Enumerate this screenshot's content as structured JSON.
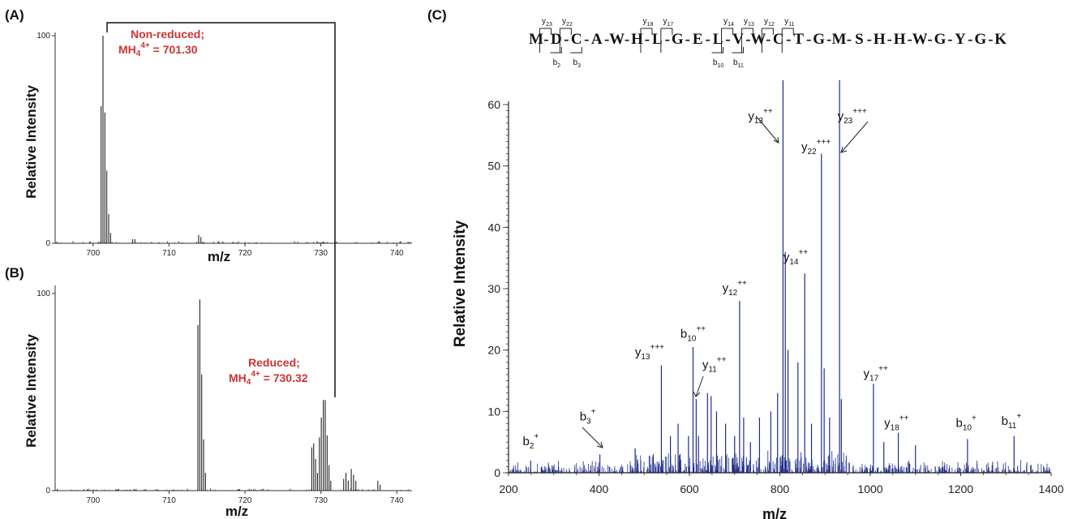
{
  "panels": {
    "a": {
      "label": "(A)"
    },
    "b": {
      "label": "(B)"
    },
    "c": {
      "label": "(C)"
    }
  },
  "annotations": {
    "non_reduced": {
      "line1": "Non-reduced;",
      "prefix": "MH",
      "sub": "4",
      "sup": "4+",
      "value": " = 701.30"
    },
    "reduced": {
      "line1": "Reduced;",
      "prefix": "MH",
      "sub": "4",
      "sup": "4+",
      "value": " = 730.32"
    },
    "color": "#cc3333"
  },
  "peptide": {
    "residues": [
      "M",
      "D",
      "C",
      "A",
      "W",
      "H",
      "L",
      "G",
      "E",
      "L",
      "V",
      "W",
      "C",
      "T",
      "G",
      "M",
      "S",
      "H",
      "H",
      "W",
      "G",
      "Y",
      "G",
      "K"
    ],
    "y_top": [
      {
        "after": 1,
        "ion": "y",
        "sub": "23"
      },
      {
        "after": 2,
        "ion": "y",
        "sub": "22"
      },
      {
        "after": 6,
        "ion": "y",
        "sub": "18"
      },
      {
        "after": 7,
        "ion": "y",
        "sub": "17"
      },
      {
        "after": 10,
        "ion": "y",
        "sub": "14"
      },
      {
        "after": 11,
        "ion": "y",
        "sub": "13"
      },
      {
        "after": 12,
        "ion": "y",
        "sub": "12"
      },
      {
        "after": 13,
        "ion": "y",
        "sub": "11"
      }
    ],
    "b_bottom": [
      {
        "after": 2,
        "ion": "b",
        "sub": "2"
      },
      {
        "after": 3,
        "ion": "b",
        "sub": "3"
      },
      {
        "after": 10,
        "ion": "b",
        "sub": "10"
      },
      {
        "after": 11,
        "ion": "b",
        "sub": "11"
      }
    ]
  },
  "chart_data": [
    {
      "id": "A",
      "type": "bar",
      "xlabel": "m/z",
      "ylabel": "Relative Intensity",
      "xlim": [
        695,
        742
      ],
      "ylim": [
        0,
        100
      ],
      "xticks": [
        700,
        710,
        720,
        730,
        740
      ],
      "yticks": [
        0,
        100
      ],
      "color": "#222222",
      "peaks": [
        [
          701.05,
          66
        ],
        [
          701.3,
          100
        ],
        [
          701.55,
          63
        ],
        [
          701.8,
          35
        ],
        [
          702.05,
          14
        ],
        [
          702.3,
          5
        ],
        [
          705.2,
          2
        ],
        [
          705.5,
          2
        ],
        [
          713.9,
          4
        ],
        [
          714.2,
          3
        ],
        [
          729.5,
          1
        ],
        [
          737.7,
          1
        ]
      ]
    },
    {
      "id": "B",
      "type": "bar",
      "xlabel": "m/z",
      "ylabel": "Relative Intensity",
      "xlim": [
        695,
        742
      ],
      "ylim": [
        0,
        100
      ],
      "xticks": [
        700,
        710,
        720,
        730,
        740
      ],
      "yticks": [
        0,
        100
      ],
      "color": "#222222",
      "peaks": [
        [
          713.8,
          84
        ],
        [
          714.05,
          97
        ],
        [
          714.3,
          59
        ],
        [
          714.55,
          26
        ],
        [
          714.8,
          9
        ],
        [
          728.8,
          22
        ],
        [
          729.05,
          24
        ],
        [
          729.3,
          16
        ],
        [
          729.55,
          9
        ],
        [
          729.8,
          27
        ],
        [
          730.05,
          37
        ],
        [
          730.32,
          46
        ],
        [
          730.57,
          46
        ],
        [
          730.82,
          28
        ],
        [
          731.07,
          13
        ],
        [
          731.3,
          5
        ],
        [
          733.0,
          6
        ],
        [
          733.3,
          9
        ],
        [
          733.6,
          5
        ],
        [
          734.0,
          11
        ],
        [
          734.3,
          8
        ],
        [
          734.6,
          5
        ],
        [
          737.5,
          5
        ],
        [
          737.8,
          3
        ]
      ]
    },
    {
      "id": "C",
      "type": "bar",
      "xlabel": "m/z",
      "ylabel": "Relative Intensity",
      "xlim": [
        200,
        1400
      ],
      "ylim": [
        0,
        60
      ],
      "xticks": [
        200,
        400,
        600,
        800,
        1000,
        1200,
        1400
      ],
      "yticks": [
        0,
        10,
        20,
        30,
        40,
        50,
        60
      ],
      "color": "#1f2d8a",
      "peaks": [
        [
          249,
          2
        ],
        [
          402,
          3
        ],
        [
          480,
          4
        ],
        [
          520,
          3
        ],
        [
          538,
          17.5
        ],
        [
          558,
          6
        ],
        [
          575,
          8
        ],
        [
          598,
          6
        ],
        [
          608,
          20.5
        ],
        [
          615,
          12
        ],
        [
          620,
          6
        ],
        [
          640,
          13
        ],
        [
          648,
          12.5
        ],
        [
          660,
          10
        ],
        [
          680,
          8
        ],
        [
          700,
          6
        ],
        [
          711,
          28
        ],
        [
          720,
          9
        ],
        [
          735,
          5
        ],
        [
          755,
          9
        ],
        [
          780,
          10
        ],
        [
          795,
          13
        ],
        [
          807,
          64
        ],
        [
          812,
          36
        ],
        [
          818,
          20
        ],
        [
          840,
          18
        ],
        [
          855,
          32.5
        ],
        [
          870,
          8
        ],
        [
          892,
          52
        ],
        [
          898,
          17
        ],
        [
          910,
          9
        ],
        [
          932,
          64
        ],
        [
          936,
          12
        ],
        [
          1007,
          14.5
        ],
        [
          1030,
          5
        ],
        [
          1062,
          6.5
        ],
        [
          1100,
          4.5
        ],
        [
          1215,
          5.5
        ],
        [
          1318,
          6
        ]
      ],
      "labels": [
        {
          "text": "b",
          "sub": "2",
          "sup": "+",
          "mz": 249,
          "y": 4.5
        },
        {
          "text": "b",
          "sub": "3",
          "sup": "+",
          "mz": 375,
          "y": 8.5
        },
        {
          "text": "y",
          "sub": "13",
          "sup": "+++",
          "mz": 512,
          "y": 19
        },
        {
          "text": "b",
          "sub": "10",
          "sup": "++",
          "mz": 608,
          "y": 22
        },
        {
          "text": "y",
          "sub": "11",
          "sup": "++",
          "mz": 655,
          "y": 17
        },
        {
          "text": "y",
          "sub": "12",
          "sup": "++",
          "mz": 700,
          "y": 29.5
        },
        {
          "text": "y",
          "sub": "13",
          "sup": "++",
          "mz": 757,
          "y": 57.5
        },
        {
          "text": "y",
          "sub": "14",
          "sup": "++",
          "mz": 835,
          "y": 34.5
        },
        {
          "text": "y",
          "sub": "22",
          "sup": "+++",
          "mz": 880,
          "y": 52.5
        },
        {
          "text": "y",
          "sub": "23",
          "sup": "+++",
          "mz": 960,
          "y": 57.5
        },
        {
          "text": "y",
          "sub": "17",
          "sup": "++",
          "mz": 1012,
          "y": 15.5
        },
        {
          "text": "y",
          "sub": "18",
          "sup": "++",
          "mz": 1058,
          "y": 7.5
        },
        {
          "text": "b",
          "sub": "10",
          "sup": "+",
          "mz": 1212,
          "y": 7.5
        },
        {
          "text": "b",
          "sub": "11",
          "sup": "+",
          "mz": 1312,
          "y": 7.8
        }
      ]
    }
  ]
}
